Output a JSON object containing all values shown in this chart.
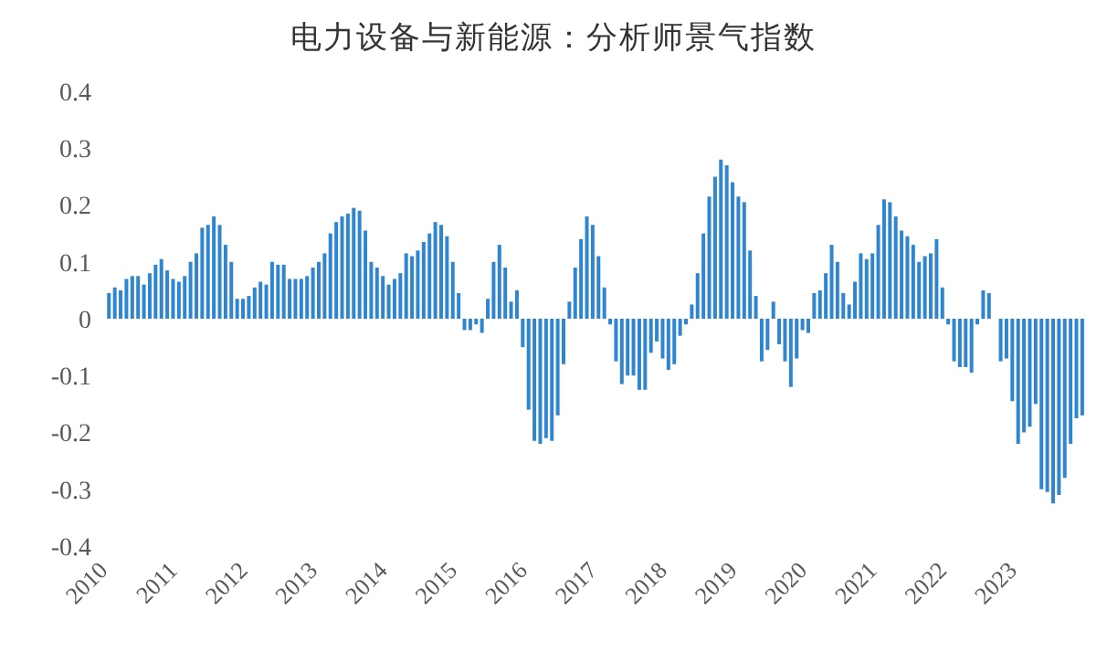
{
  "chart_data": {
    "type": "bar",
    "title": "电力设备与新能源：分析师景气指数",
    "categories": [
      "2010",
      null,
      null,
      null,
      null,
      null,
      null,
      null,
      null,
      null,
      null,
      null,
      "2011",
      null,
      null,
      null,
      null,
      null,
      null,
      null,
      null,
      null,
      null,
      null,
      "2012",
      null,
      null,
      null,
      null,
      null,
      null,
      null,
      null,
      null,
      null,
      null,
      "2013",
      null,
      null,
      null,
      null,
      null,
      null,
      null,
      null,
      null,
      null,
      null,
      "2014",
      null,
      null,
      null,
      null,
      null,
      null,
      null,
      null,
      null,
      null,
      null,
      "2015",
      null,
      null,
      null,
      null,
      null,
      null,
      null,
      null,
      null,
      null,
      null,
      "2016",
      null,
      null,
      null,
      null,
      null,
      null,
      null,
      null,
      null,
      null,
      null,
      "2017",
      null,
      null,
      null,
      null,
      null,
      null,
      null,
      null,
      null,
      null,
      null,
      "2018",
      null,
      null,
      null,
      null,
      null,
      null,
      null,
      null,
      null,
      null,
      null,
      "2019",
      null,
      null,
      null,
      null,
      null,
      null,
      null,
      null,
      null,
      null,
      null,
      "2020",
      null,
      null,
      null,
      null,
      null,
      null,
      null,
      null,
      null,
      null,
      null,
      "2021",
      null,
      null,
      null,
      null,
      null,
      null,
      null,
      null,
      null,
      null,
      null,
      "2022",
      null,
      null,
      null,
      null,
      null,
      null,
      null,
      null,
      null,
      null,
      null,
      "2023",
      null,
      null,
      null,
      null,
      null,
      null,
      null,
      null,
      null,
      null,
      null
    ],
    "values": [
      0.045,
      0.055,
      0.05,
      0.07,
      0.075,
      0.075,
      0.06,
      0.08,
      0.095,
      0.105,
      0.085,
      0.07,
      0.065,
      0.075,
      0.1,
      0.115,
      0.16,
      0.165,
      0.18,
      0.165,
      0.13,
      0.1,
      0.035,
      0.035,
      0.04,
      0.055,
      0.065,
      0.06,
      0.1,
      0.095,
      0.095,
      0.07,
      0.07,
      0.07,
      0.075,
      0.09,
      0.1,
      0.115,
      0.15,
      0.17,
      0.18,
      0.185,
      0.195,
      0.19,
      0.155,
      0.1,
      0.09,
      0.075,
      0.06,
      0.07,
      0.08,
      0.115,
      0.11,
      0.12,
      0.135,
      0.15,
      0.17,
      0.165,
      0.145,
      0.1,
      0.045,
      -0.02,
      -0.02,
      -0.01,
      -0.025,
      0.035,
      0.1,
      0.13,
      0.09,
      0.03,
      0.05,
      -0.05,
      -0.16,
      -0.215,
      -0.22,
      -0.21,
      -0.215,
      -0.17,
      -0.08,
      0.03,
      0.09,
      0.14,
      0.18,
      0.165,
      0.11,
      0.055,
      -0.01,
      -0.075,
      -0.115,
      -0.1,
      -0.1,
      -0.125,
      -0.125,
      -0.06,
      -0.04,
      -0.07,
      -0.09,
      -0.08,
      -0.03,
      -0.01,
      0.025,
      0.08,
      0.15,
      0.215,
      0.25,
      0.28,
      0.27,
      0.24,
      0.215,
      0.205,
      0.12,
      0.04,
      -0.075,
      -0.055,
      0.03,
      -0.045,
      -0.075,
      -0.12,
      -0.07,
      -0.02,
      -0.025,
      0.045,
      0.05,
      0.08,
      0.13,
      0.1,
      0.045,
      0.025,
      0.065,
      0.115,
      0.105,
      0.115,
      0.165,
      0.21,
      0.205,
      0.18,
      0.155,
      0.145,
      0.13,
      0.1,
      0.11,
      0.115,
      0.14,
      0.055,
      -0.01,
      -0.075,
      -0.085,
      -0.085,
      -0.095,
      -0.01,
      0.05,
      0.045,
      0,
      -0.075,
      -0.07,
      -0.145,
      -0.22,
      -0.2,
      -0.19,
      -0.15,
      -0.3,
      -0.305,
      -0.325,
      -0.31,
      -0.28,
      -0.22,
      -0.175,
      -0.17
    ],
    "color": "#2f86cf",
    "ylim": [
      -0.4,
      0.4
    ],
    "yticks": [
      -0.4,
      -0.3,
      -0.2,
      -0.1,
      0,
      0.1,
      0.2,
      0.3,
      0.4
    ],
    "grid": false,
    "legend": false
  }
}
